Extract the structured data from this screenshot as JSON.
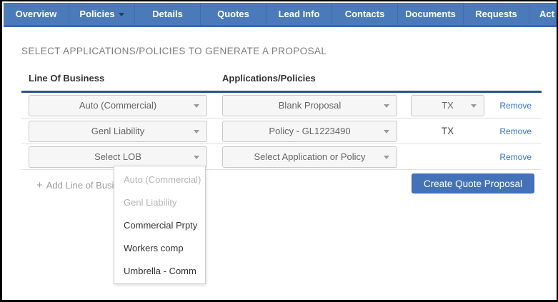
{
  "navbar": {
    "items": [
      {
        "label": "Overview"
      },
      {
        "label": "Policies",
        "has_caret": true
      },
      {
        "label": "Details"
      },
      {
        "label": "Quotes"
      },
      {
        "label": "Lead Info"
      },
      {
        "label": "Contacts"
      },
      {
        "label": "Documents"
      },
      {
        "label": "Requests"
      },
      {
        "label": "Act"
      }
    ]
  },
  "page": {
    "title": "SELECT APPLICATIONS/POLICIES TO GENERATE A PROPOSAL"
  },
  "table": {
    "headers": {
      "lob": "Line Of Business",
      "apps": "Applications/Policies"
    },
    "rows": [
      {
        "lob": "Auto (Commercial)",
        "app": "Blank Proposal",
        "state": "TX",
        "state_is_dropdown": true
      },
      {
        "lob": "Genl Liability",
        "app": "Policy - GL1223490",
        "state": "TX",
        "state_is_dropdown": false
      },
      {
        "lob": "Select LOB",
        "app": "Select Application or Policy",
        "state": "",
        "state_is_dropdown": false
      }
    ],
    "remove_label": "Remove",
    "add_line_label": "Add Line of Business",
    "create_button": "Create Quote Proposal"
  },
  "lob_dropdown": {
    "options": [
      {
        "label": "Auto (Commercial)",
        "disabled": true
      },
      {
        "label": "Genl Liability",
        "disabled": true
      },
      {
        "label": "Commercial Prpty",
        "disabled": false
      },
      {
        "label": "Workers comp",
        "disabled": false
      },
      {
        "label": "Umbrella - Comm",
        "disabled": false
      }
    ]
  },
  "icons": {
    "plus": "+"
  },
  "colors": {
    "nav-bg": "#4a7ab9",
    "nav-border": "#3a69a6",
    "nav-sep": "#3e6ea9",
    "rule-color": "#2a5588",
    "link-color": "#3074c9",
    "button-bg": "#4472b9",
    "title-color": "#7d7d7d"
  }
}
